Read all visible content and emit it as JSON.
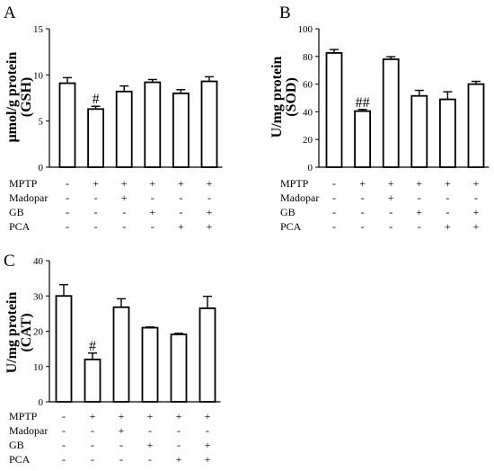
{
  "condition_rows": [
    {
      "label": "MPTP",
      "signs": [
        "-",
        "+",
        "+",
        "+",
        "+",
        "+"
      ]
    },
    {
      "label": "Madopar",
      "signs": [
        "-",
        "-",
        "+",
        "-",
        "-",
        "-"
      ]
    },
    {
      "label": "GB",
      "signs": [
        "-",
        "-",
        "-",
        "+",
        "-",
        "+"
      ]
    },
    {
      "label": "PCA",
      "signs": [
        "-",
        "-",
        "-",
        "-",
        "+",
        "+"
      ]
    }
  ],
  "chart_data": [
    {
      "panel": "A",
      "type": "bar",
      "ylabel_line1": "μmol/g protein",
      "ylabel_line2": "(GSH)",
      "ylim": [
        0,
        15
      ],
      "yticks": [
        "0",
        "5",
        "10",
        "15"
      ],
      "values": [
        9.1,
        6.3,
        8.2,
        9.2,
        8.0,
        9.3
      ],
      "errors": [
        0.6,
        0.3,
        0.6,
        0.3,
        0.4,
        0.5
      ],
      "annotations": [
        {
          "bar": 1,
          "text": "#"
        }
      ]
    },
    {
      "panel": "B",
      "type": "bar",
      "ylabel_line1": "U/mg protein",
      "ylabel_line2": "(SOD)",
      "ylim": [
        0,
        100
      ],
      "yticks": [
        "0",
        "20",
        "40",
        "60",
        "80",
        "100"
      ],
      "values": [
        82.5,
        40.5,
        78.0,
        51.5,
        49.0,
        60.0
      ],
      "errors": [
        2.5,
        1.2,
        1.8,
        4.0,
        5.5,
        2.0
      ],
      "annotations": [
        {
          "bar": 1,
          "text": "##"
        }
      ]
    },
    {
      "panel": "C",
      "type": "bar",
      "ylabel_line1": "U/mg protein",
      "ylabel_line2": "(CAT)",
      "ylim": [
        0,
        40
      ],
      "yticks": [
        "0",
        "10",
        "20",
        "30",
        "40"
      ],
      "values": [
        30.0,
        12.0,
        26.8,
        21.0,
        19.1,
        26.5
      ],
      "errors": [
        3.2,
        1.8,
        2.4,
        0.2,
        0.3,
        3.4
      ],
      "annotations": [
        {
          "bar": 1,
          "text": "#"
        }
      ]
    }
  ]
}
